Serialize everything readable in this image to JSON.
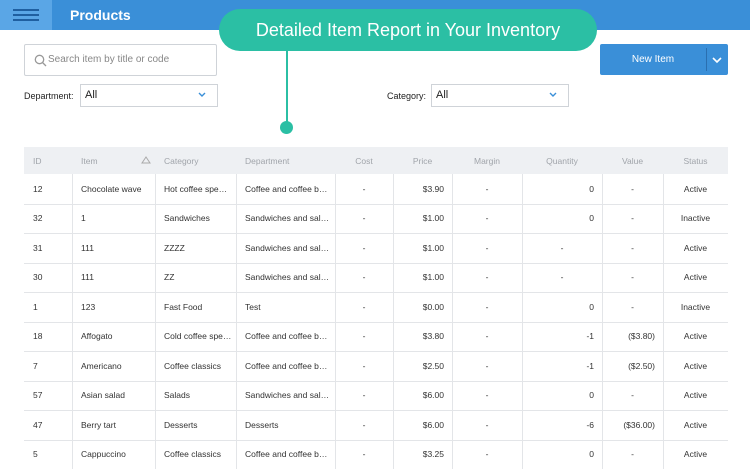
{
  "header": {
    "title": "Products"
  },
  "callout": {
    "text": "Detailed Item Report in Your Inventory"
  },
  "toolbar": {
    "search_placeholder": "Search item by title or code",
    "new_item_button": "New Item",
    "department": {
      "label": "Department:",
      "value": "All"
    },
    "category": {
      "label": "Category:",
      "value": "All"
    }
  },
  "table": {
    "columns": [
      "ID",
      "Item",
      "Category",
      "Department",
      "Cost",
      "Price",
      "Margin",
      "Quantity",
      "Value",
      "Status"
    ],
    "rows": [
      [
        "12",
        "Chocolate wave",
        "Hot coffee spe…",
        "Coffee and coffee b…",
        "-",
        "$3.90",
        "-",
        "0",
        "-",
        "Active"
      ],
      [
        "32",
        "1",
        "Sandwiches",
        "Sandwiches and sal…",
        "-",
        "$1.00",
        "-",
        "0",
        "-",
        "Inactive"
      ],
      [
        "31",
        "111",
        "ZZZZ",
        "Sandwiches and sal…",
        "-",
        "$1.00",
        "-",
        "-",
        "-",
        "Active"
      ],
      [
        "30",
        "111",
        "ZZ",
        "Sandwiches and sal…",
        "-",
        "$1.00",
        "-",
        "-",
        "-",
        "Active"
      ],
      [
        "1",
        "123",
        "Fast Food",
        "Test",
        "-",
        "$0.00",
        "-",
        "0",
        "-",
        "Inactive"
      ],
      [
        "18",
        "Affogato",
        "Cold coffee spe…",
        "Coffee and coffee b…",
        "-",
        "$3.80",
        "-",
        "-1",
        "($3.80)",
        "Active"
      ],
      [
        "7",
        "Americano",
        "Coffee classics",
        "Coffee and coffee b…",
        "-",
        "$2.50",
        "-",
        "-1",
        "($2.50)",
        "Active"
      ],
      [
        "57",
        "Asian salad",
        "Salads",
        "Sandwiches and sal…",
        "-",
        "$6.00",
        "-",
        "0",
        "-",
        "Active"
      ],
      [
        "47",
        "Berry tart",
        "Desserts",
        "Desserts",
        "-",
        "$6.00",
        "-",
        "-6",
        "($36.00)",
        "Active"
      ],
      [
        "5",
        "Cappuccino",
        "Coffee classics",
        "Coffee and coffee b…",
        "-",
        "$3.25",
        "-",
        "0",
        "-",
        "Active"
      ]
    ]
  }
}
